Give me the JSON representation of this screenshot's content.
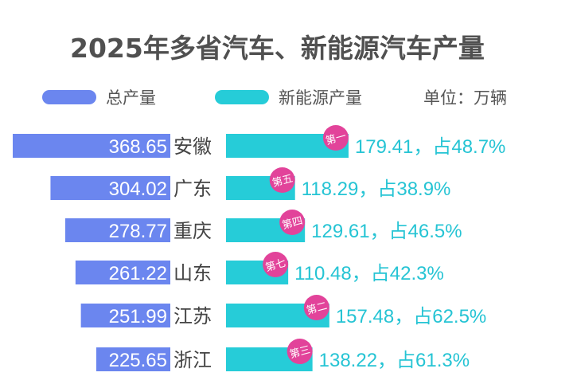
{
  "chart_data": {
    "type": "bar",
    "title": "2025年多省汽车、新能源汽车产量",
    "unit": "单位：万辆",
    "categories": [
      "安徽",
      "广东",
      "重庆",
      "山东",
      "江苏",
      "浙江"
    ],
    "series": [
      {
        "name": "总产量",
        "color": "#6b86ef",
        "values": [
          368.65,
          304.02,
          278.77,
          261.22,
          251.99,
          225.65
        ]
      },
      {
        "name": "新能源产量",
        "color": "#26ccd8",
        "values": [
          179.41,
          118.29,
          129.61,
          110.48,
          157.48,
          138.22
        ]
      }
    ],
    "share_labels": [
      "179.41，占48.7%",
      "118.29，占38.9%",
      "129.61，占46.5%",
      "110.48，占42.3%",
      "157.48，占62.5%",
      "138.22，占61.3%"
    ],
    "rank_badges": [
      "第一",
      "第五",
      "第四",
      "第七",
      "第二",
      "第三"
    ],
    "badge_color": "#e2439a",
    "legend_position": "top",
    "grid": false
  }
}
